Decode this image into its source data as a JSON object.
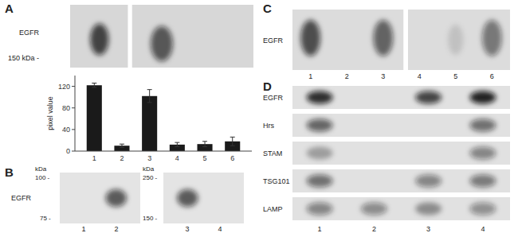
{
  "chart_data": {
    "type": "bar",
    "categories": [
      "1",
      "2",
      "3",
      "4",
      "5",
      "6"
    ],
    "values": [
      122,
      10,
      102,
      12,
      13,
      18
    ],
    "errors": [
      4,
      3,
      12,
      4,
      5,
      8
    ],
    "color": "#1a1a1a",
    "ylabel": "pixel value",
    "ylim": [
      0,
      140
    ],
    "yticks": [
      0,
      40,
      80,
      120
    ],
    "grid": false,
    "annotations": [
      "A",
      "EGFR",
      "150 kDa -",
      "B",
      "kDa",
      "100 -",
      "EGFR",
      "75 -",
      "1",
      "2",
      "kDa",
      "250 -",
      "150 -",
      "3",
      "4",
      "C",
      "EGFR",
      "1",
      "2",
      "3",
      "4",
      "5",
      "6",
      "D",
      "EGFR",
      "Hrs",
      "STAM",
      "TSG101",
      "LAMP",
      "1",
      "2",
      "3",
      "4"
    ]
  }
}
